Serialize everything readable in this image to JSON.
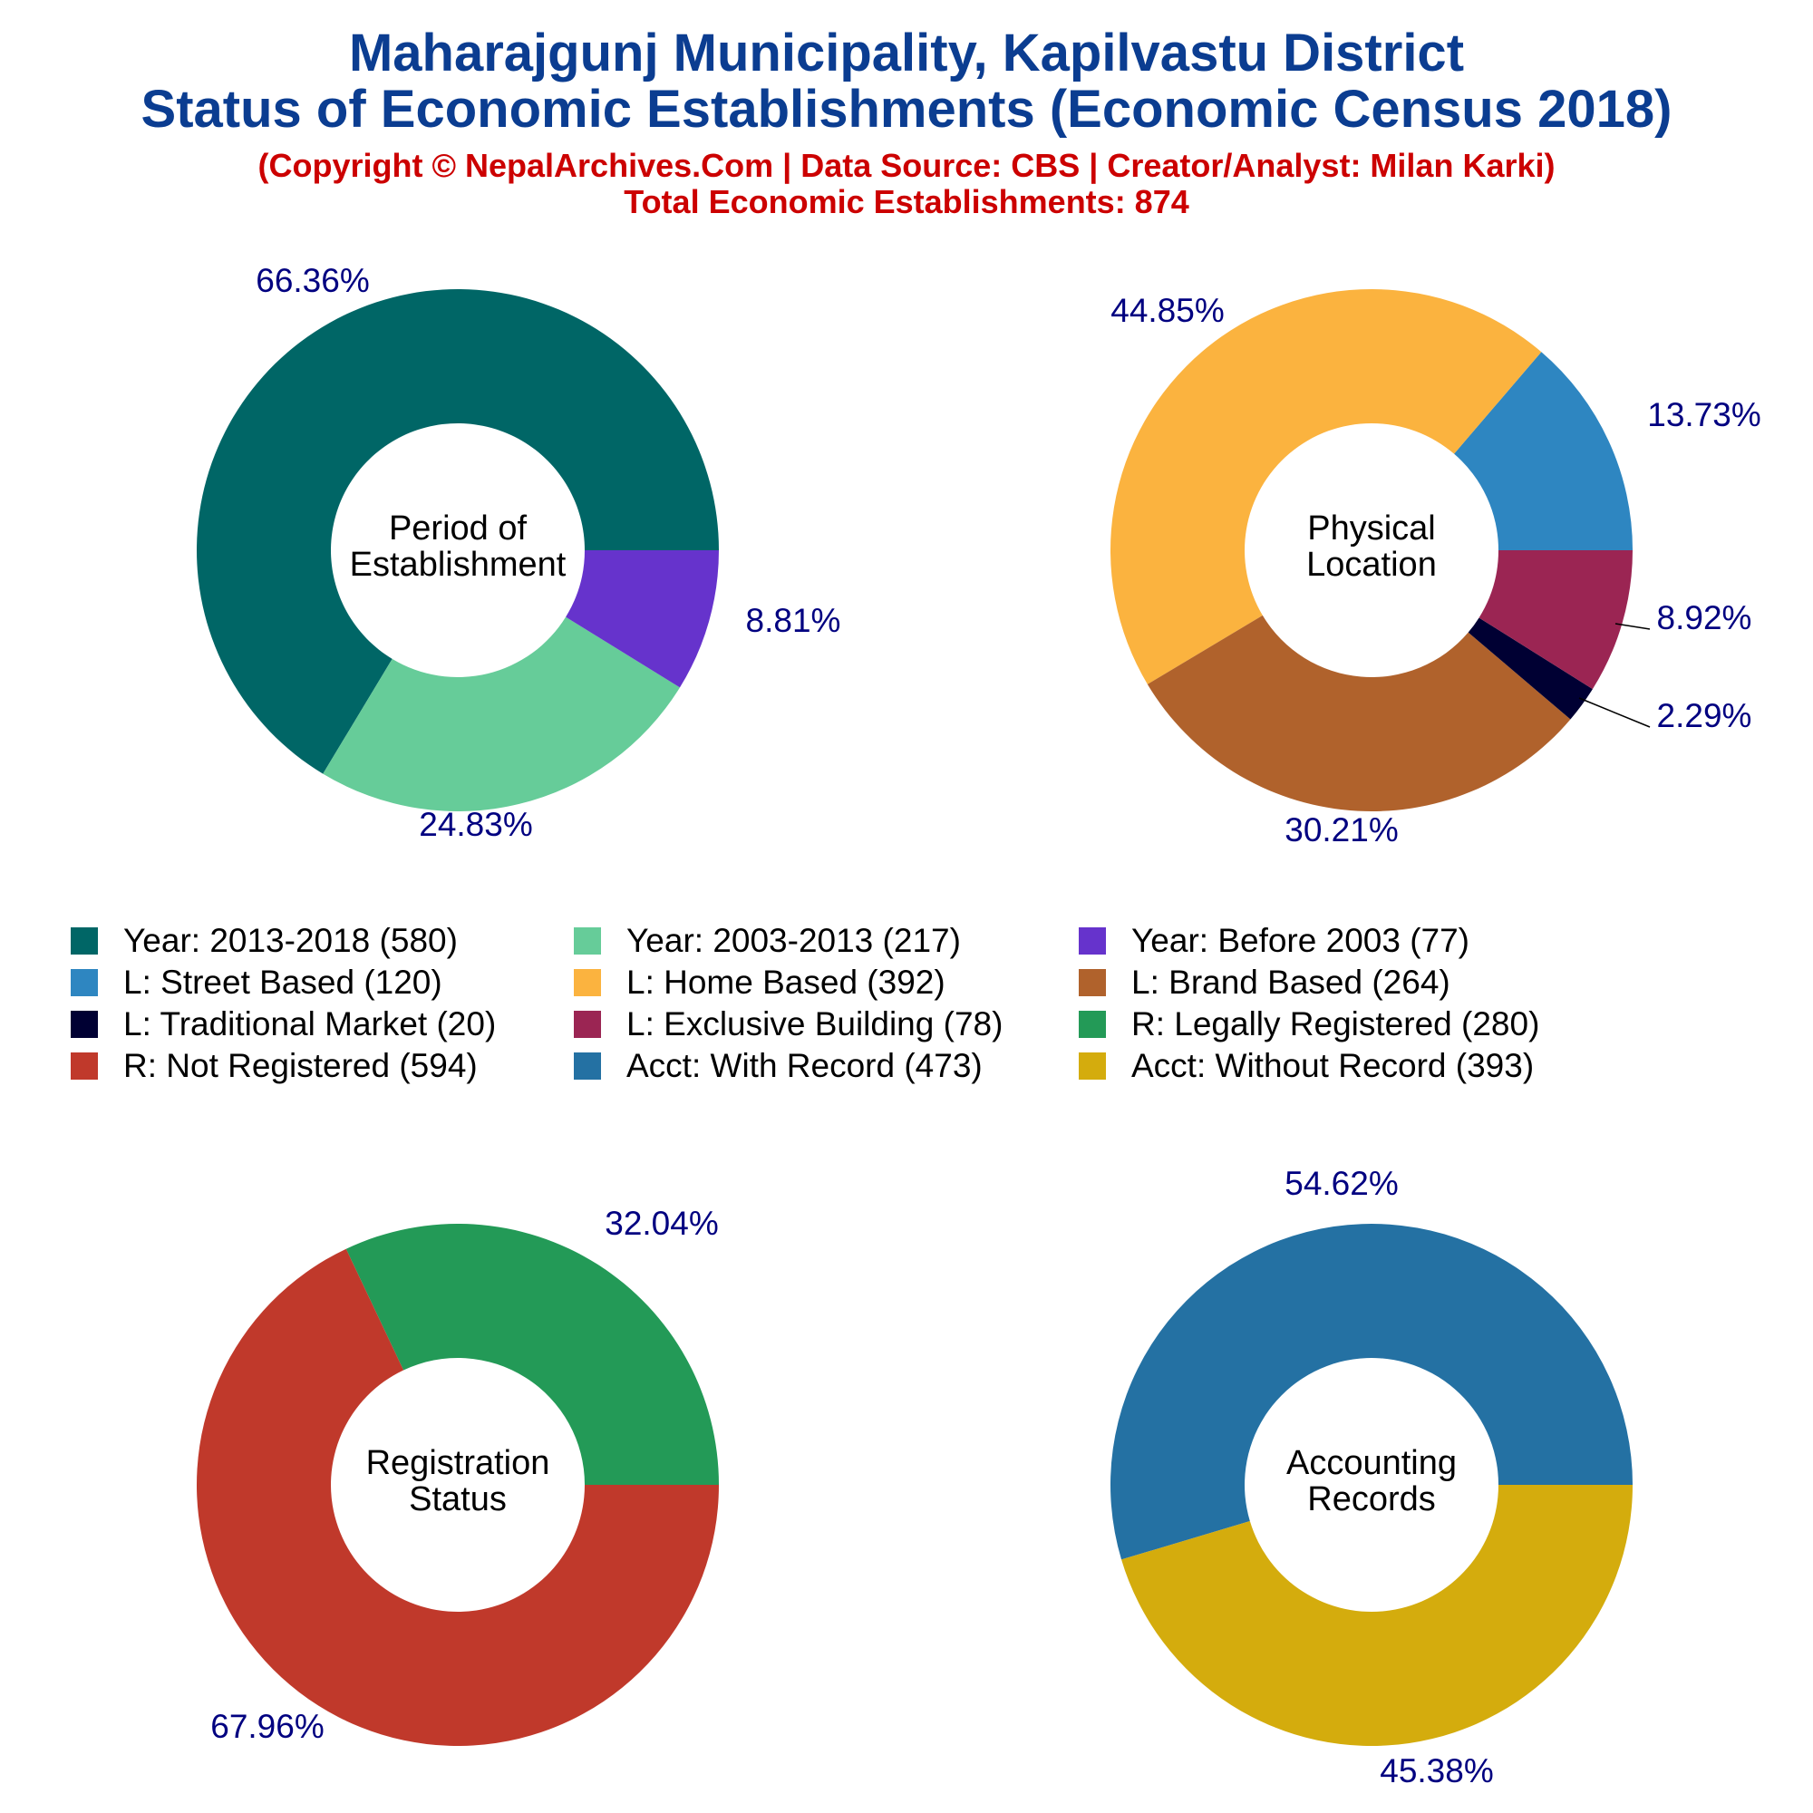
{
  "header": {
    "title_line1": "Maharajgunj Municipality, Kapilvastu District",
    "title_line2": "Status of Economic Establishments (Economic Census 2018)",
    "subtitle_line1": "(Copyright © NepalArchives.Com | Data Source: CBS | Creator/Analyst: Milan Karki)",
    "subtitle_line2": "Total Economic Establishments: 874"
  },
  "colors": {
    "title": "#0b3d91",
    "subtitle": "#cc0000",
    "percent_label": "#000080"
  },
  "chart_data": [
    {
      "type": "pie",
      "center_label": [
        "Period of",
        "Establishment"
      ],
      "slices": [
        {
          "label": "Year: 2013-2018",
          "value": 580,
          "percent": "66.36%",
          "color": "#006666"
        },
        {
          "label": "Year: 2003-2013",
          "value": 217,
          "percent": "24.83%",
          "color": "#66cc99"
        },
        {
          "label": "Year: Before 2003",
          "value": 77,
          "percent": "8.81%",
          "color": "#6633cc"
        }
      ]
    },
    {
      "type": "pie",
      "center_label": [
        "Physical",
        "Location"
      ],
      "slices": [
        {
          "label": "L: Street Based",
          "value": 120,
          "percent": "13.73%",
          "color": "#2e86c1"
        },
        {
          "label": "L: Home Based",
          "value": 392,
          "percent": "44.85%",
          "color": "#fbb33f"
        },
        {
          "label": "L: Brand Based",
          "value": 264,
          "percent": "30.21%",
          "color": "#b0622c"
        },
        {
          "label": "L: Traditional Market",
          "value": 20,
          "percent": "2.29%",
          "color": "#000033"
        },
        {
          "label": "L: Exclusive Building",
          "value": 78,
          "percent": "8.92%",
          "color": "#9b2553"
        }
      ]
    },
    {
      "type": "pie",
      "center_label": [
        "Registration",
        "Status"
      ],
      "slices": [
        {
          "label": "R: Legally Registered",
          "value": 280,
          "percent": "32.04%",
          "color": "#239a57"
        },
        {
          "label": "R: Not Registered",
          "value": 594,
          "percent": "67.96%",
          "color": "#c0392b"
        }
      ]
    },
    {
      "type": "pie",
      "center_label": [
        "Accounting",
        "Records"
      ],
      "slices": [
        {
          "label": "Acct: With Record",
          "value": 473,
          "percent": "54.62%",
          "color": "#2471a3"
        },
        {
          "label": "Acct: Without Record",
          "value": 393,
          "percent": "45.38%",
          "color": "#d4ac0d"
        }
      ]
    }
  ],
  "legend": [
    {
      "label": "Year: 2013-2018 (580)",
      "color": "#006666"
    },
    {
      "label": "Year: 2003-2013 (217)",
      "color": "#66cc99"
    },
    {
      "label": "Year: Before 2003 (77)",
      "color": "#6633cc"
    },
    {
      "label": "L: Street Based (120)",
      "color": "#2e86c1"
    },
    {
      "label": "L: Home Based (392)",
      "color": "#fbb33f"
    },
    {
      "label": "L: Brand Based (264)",
      "color": "#b0622c"
    },
    {
      "label": "L: Traditional Market (20)",
      "color": "#000033"
    },
    {
      "label": "L: Exclusive Building (78)",
      "color": "#9b2553"
    },
    {
      "label": "R: Legally Registered (280)",
      "color": "#239a57"
    },
    {
      "label": "R: Not Registered (594)",
      "color": "#c0392b"
    },
    {
      "label": "Acct: With Record (473)",
      "color": "#2471a3"
    },
    {
      "label": "Acct: Without Record (393)",
      "color": "#d4ac0d"
    }
  ]
}
